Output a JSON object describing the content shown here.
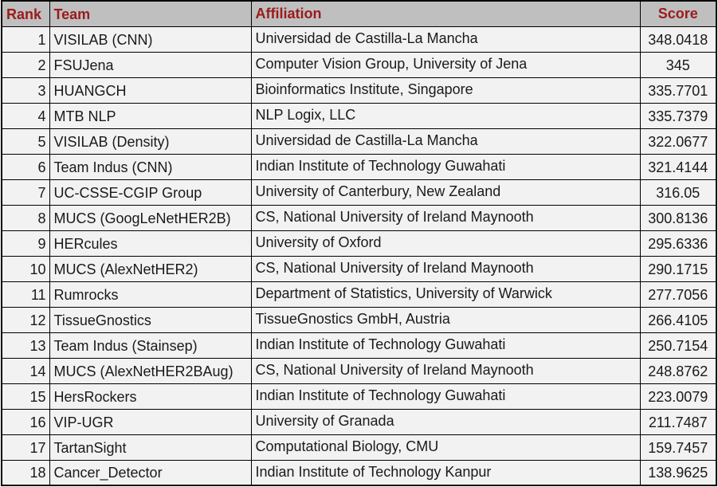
{
  "colors": {
    "border": "#000000",
    "header_background": "#bfbfbf",
    "header_text": "#9b1b1b",
    "row_background": "#f2f2f2",
    "body_text": "#1a1a1a",
    "page_background": "#ffffff"
  },
  "table": {
    "columns": [
      {
        "id": "rank",
        "label": "Rank"
      },
      {
        "id": "team",
        "label": "Team"
      },
      {
        "id": "affiliation",
        "label": "Affiliation"
      },
      {
        "id": "score",
        "label": "Score"
      }
    ],
    "rows": [
      {
        "rank": "1",
        "team": "VISILAB (CNN)",
        "affiliation": "Universidad de Castilla-La Mancha",
        "score": "348.0418"
      },
      {
        "rank": "2",
        "team": "FSUJena",
        "affiliation": "Computer Vision Group, University of Jena",
        "score": "345"
      },
      {
        "rank": "3",
        "team": "HUANGCH",
        "affiliation": "Bioinformatics Institute, Singapore",
        "score": "335.7701"
      },
      {
        "rank": "4",
        "team": "MTB NLP",
        "affiliation": "NLP Logix, LLC",
        "score": "335.7379"
      },
      {
        "rank": "5",
        "team": "VISILAB (Density)",
        "affiliation": "Universidad de Castilla-La Mancha",
        "score": "322.0677"
      },
      {
        "rank": "6",
        "team": "Team Indus (CNN)",
        "affiliation": "Indian Institute of Technology Guwahati",
        "score": "321.4144"
      },
      {
        "rank": "7",
        "team": "UC-CSSE-CGIP Group",
        "affiliation": "University of Canterbury, New Zealand",
        "score": "316.05"
      },
      {
        "rank": "8",
        "team": "MUCS (GoogLeNetHER2B)",
        "affiliation": "CS, National University of Ireland Maynooth",
        "score": "300.8136"
      },
      {
        "rank": "9",
        "team": "HERcules",
        "affiliation": "University of Oxford",
        "score": "295.6336"
      },
      {
        "rank": "10",
        "team": "MUCS (AlexNetHER2)",
        "affiliation": "CS, National University of Ireland Maynooth",
        "score": "290.1715"
      },
      {
        "rank": "11",
        "team": "Rumrocks",
        "affiliation": "Department of Statistics, University of Warwick",
        "score": "277.7056"
      },
      {
        "rank": "12",
        "team": "TissueGnostics",
        "affiliation": "TissueGnostics GmbH, Austria",
        "score": "266.4105"
      },
      {
        "rank": "13",
        "team": "Team Indus (Stainsep)",
        "affiliation": "Indian Institute of Technology Guwahati",
        "score": "250.7154"
      },
      {
        "rank": "14",
        "team": "MUCS (AlexNetHER2BAug)",
        "affiliation": "CS, National University of Ireland Maynooth",
        "score": "248.8762"
      },
      {
        "rank": "15",
        "team": "HersRockers",
        "affiliation": "Indian Institute of Technology Guwahati",
        "score": "223.0079"
      },
      {
        "rank": "16",
        "team": "VIP-UGR",
        "affiliation": "University of Granada",
        "score": "211.7487"
      },
      {
        "rank": "17",
        "team": "TartanSight",
        "affiliation": "Computational Biology, CMU",
        "score": "159.7457"
      },
      {
        "rank": "18",
        "team": "Cancer_Detector",
        "affiliation": "Indian Institute of Technology Kanpur",
        "score": "138.9625"
      }
    ]
  }
}
